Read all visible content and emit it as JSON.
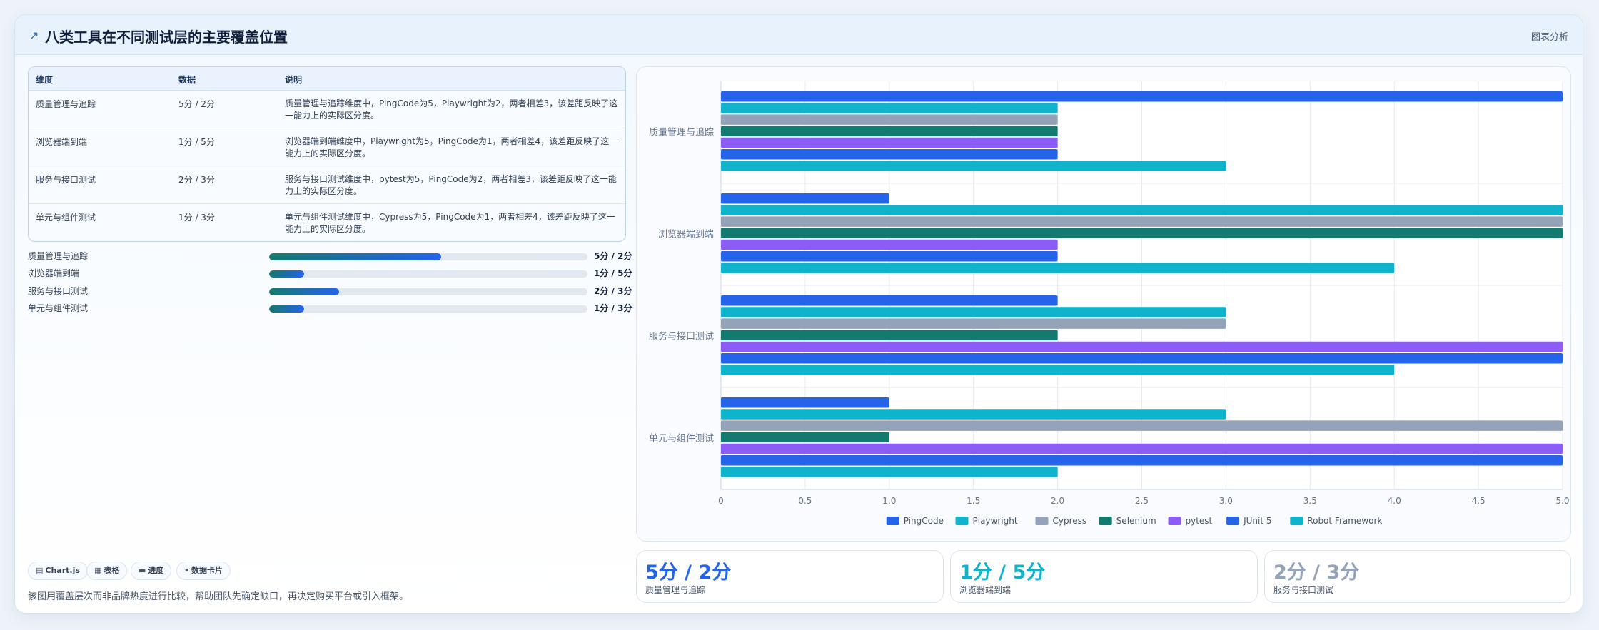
{
  "header": {
    "icon": "chart-arrow-icon",
    "title": "八类工具在不同测试层的主要覆盖位置",
    "right_label": "图表分析"
  },
  "table": {
    "headers": [
      "维度",
      "数据",
      "说明"
    ],
    "rows": [
      {
        "dim": "质量管理与追踪",
        "data": "5分 / 2分",
        "desc": "质量管理与追踪维度中，PingCode为5，Playwright为2，两者相差3，该差距反映了这一能力上的实际区分度。"
      },
      {
        "dim": "浏览器端到端",
        "data": "1分 / 5分",
        "desc": "浏览器端到端维度中，Playwright为5，PingCode为1，两者相差4，该差距反映了这一能力上的实际区分度。"
      },
      {
        "dim": "服务与接口测试",
        "data": "2分 / 3分",
        "desc": "服务与接口测试维度中，pytest为5，PingCode为2，两者相差3，该差距反映了这一能力上的实际区分度。"
      },
      {
        "dim": "单元与组件测试",
        "data": "1分 / 3分",
        "desc": "单元与组件测试维度中，Cypress为5，PingCode为1，两者相差4，该差距反映了这一能力上的实际区分度。"
      }
    ]
  },
  "progress": [
    {
      "label": "质量管理与追踪",
      "value_text": "5分 / 2分",
      "fraction": 0.54
    },
    {
      "label": "浏览器端到端",
      "value_text": "1分 / 5分",
      "fraction": 0.11
    },
    {
      "label": "服务与接口测试",
      "value_text": "2分 / 3分",
      "fraction": 0.22
    },
    {
      "label": "单元与组件测试",
      "value_text": "1分 / 3分",
      "fraction": 0.11
    }
  ],
  "chips": [
    {
      "icon": "chart-icon",
      "glyph": "▤",
      "label": "Chart.js"
    },
    {
      "icon": "table-icon",
      "glyph": "▦",
      "label": "表格"
    },
    {
      "icon": "progress-icon",
      "glyph": "▬",
      "label": "进度"
    },
    {
      "icon": "card-icon",
      "glyph": "•",
      "label": "数据卡片"
    }
  ],
  "footnote": "该图用覆盖层次而非品牌热度进行比较，帮助团队先确定缺口，再决定购买平台或引入框架。",
  "stats": [
    {
      "value": "5分 / 2分",
      "label": "质量管理与追踪",
      "color": "#2563eb"
    },
    {
      "value": "1分 / 5分",
      "label": "浏览器端到端",
      "color": "#0fb3cc"
    },
    {
      "value": "2分 / 3分",
      "label": "服务与接口测试",
      "color": "#94a3b8"
    }
  ],
  "chart_data": {
    "type": "bar",
    "orientation": "horizontal",
    "categories": [
      "质量管理与追踪",
      "浏览器端到端",
      "服务与接口测试",
      "单元与组件测试"
    ],
    "series": [
      {
        "name": "PingCode",
        "color": "#2563eb",
        "values": [
          5,
          1,
          2,
          1
        ]
      },
      {
        "name": "Playwright",
        "color": "#0fb3cc",
        "values": [
          2,
          5,
          3,
          3
        ]
      },
      {
        "name": "Cypress",
        "color": "#94a3b8",
        "values": [
          2,
          5,
          3,
          5
        ]
      },
      {
        "name": "Selenium",
        "color": "#137a6f",
        "values": [
          2,
          5,
          2,
          1
        ]
      },
      {
        "name": "pytest",
        "color": "#8b5cf6",
        "values": [
          2,
          2,
          5,
          5
        ]
      },
      {
        "name": "JUnit 5",
        "color": "#2563eb",
        "values": [
          2,
          2,
          5,
          5
        ]
      },
      {
        "name": "Robot Framework",
        "color": "#0fb3cc",
        "values": [
          3,
          4,
          4,
          2
        ]
      }
    ],
    "xlim": [
      0,
      5
    ],
    "x_ticks": [
      "0",
      "0.5",
      "1.0",
      "1.5",
      "2.0",
      "2.5",
      "3.0",
      "3.5",
      "4.0",
      "4.5",
      "5.0"
    ],
    "grid": true,
    "legend_position": "bottom"
  }
}
